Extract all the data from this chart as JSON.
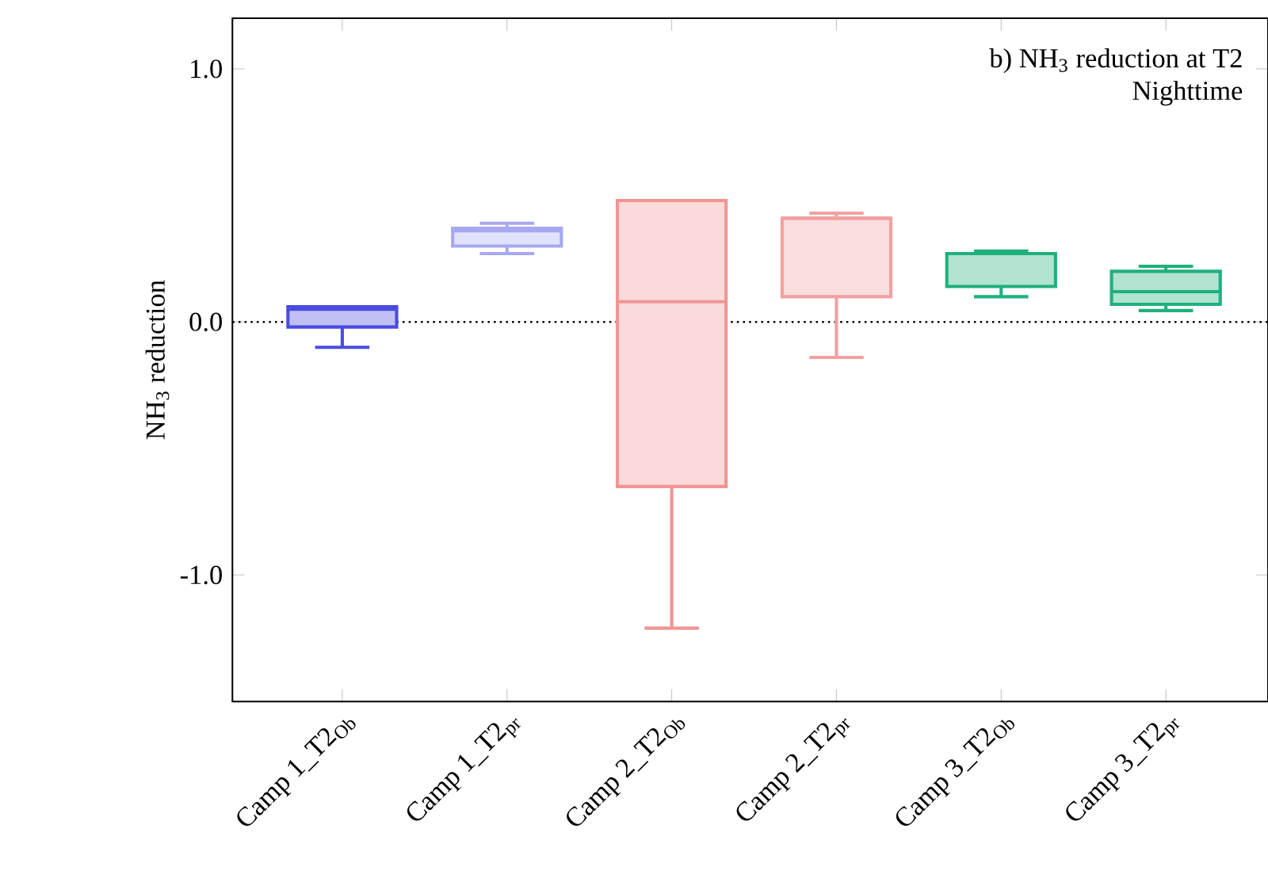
{
  "chart_data": {
    "type": "box",
    "title": "b) NH$_{3}$ reduction at T2",
    "subtitle": "Nighttime",
    "ylabel": "NH$_{3}$ reduction",
    "categories": [
      "Camp 1_T2$_{Ob}$",
      "Camp 1_T2$_{pr}$",
      "Camp 2_T2$_{Ob}$",
      "Camp 2_T2$_{pr}$",
      "Camp 3_T2$_{Ob}$",
      "Camp 3_T2$_{pr}$"
    ],
    "colors": [
      "#4b4be0",
      "#a8a8f0",
      "#f29494",
      "#f2a0a0",
      "#1fb07c",
      "#1fb07c"
    ],
    "boxes": [
      {
        "low": -0.1,
        "q1": -0.02,
        "median": 0.05,
        "q3": 0.06,
        "high": 0.06
      },
      {
        "low": 0.27,
        "q1": 0.3,
        "median": 0.36,
        "q3": 0.37,
        "high": 0.39
      },
      {
        "low": -1.21,
        "q1": -0.65,
        "median": 0.08,
        "q3": 0.48,
        "high": 0.48
      },
      {
        "low": -0.14,
        "q1": 0.1,
        "median": 0.41,
        "q3": 0.41,
        "high": 0.43
      },
      {
        "low": 0.1,
        "q1": 0.14,
        "median": 0.27,
        "q3": 0.27,
        "high": 0.28
      },
      {
        "low": 0.045,
        "q1": 0.07,
        "median": 0.12,
        "q3": 0.2,
        "high": 0.22
      }
    ],
    "ylim": [
      -1.5,
      1.2
    ],
    "yticks": [
      {
        "value": -1,
        "label": "-1.0"
      },
      {
        "value": 0,
        "label": "0.0"
      },
      {
        "value": 1,
        "label": "1.0"
      }
    ],
    "ref_lines": [
      {
        "axis": "y",
        "value": 0,
        "color": "#000000",
        "line_style": "dotted"
      }
    ]
  }
}
